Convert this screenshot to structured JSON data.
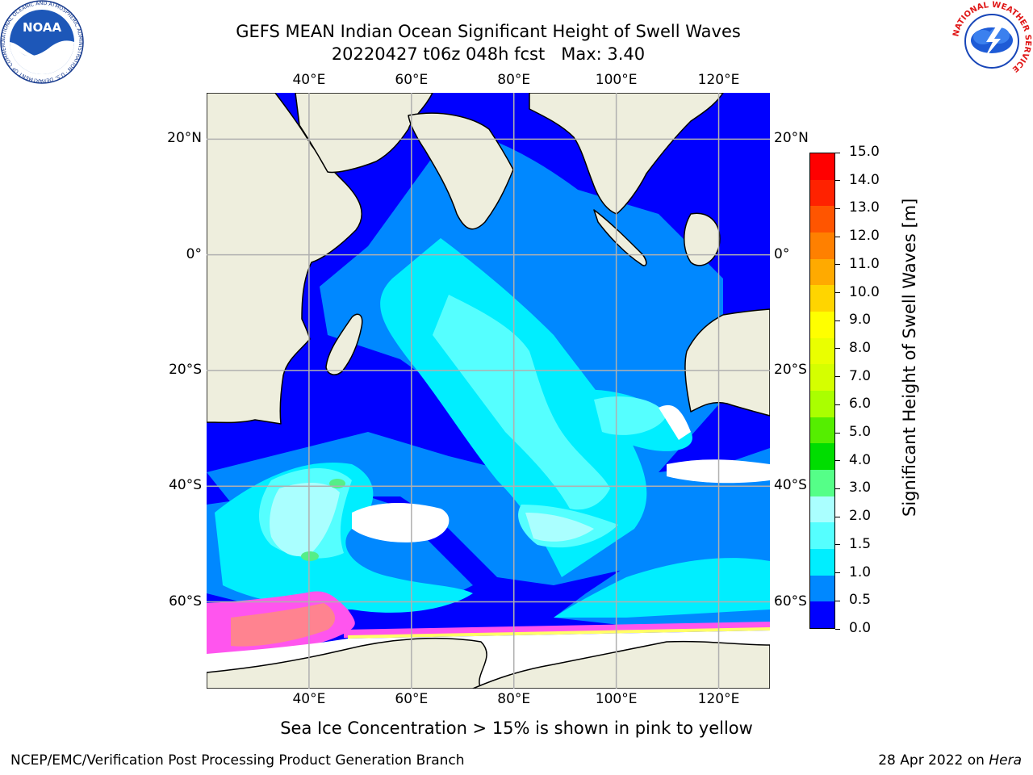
{
  "header": {
    "title_line1": "GEFS MEAN Indian Ocean Significant Height of Swell Waves",
    "title_line2": "20220427 t06z 048h fcst   Max: 3.40",
    "noaa_logo_text": "NOAA",
    "noaa_ring_text": "NATIONAL OCEANIC AND ATMOSPHERIC ADMINISTRATION · U.S. DEPARTMENT OF COMMERCE ·",
    "nws_ring_text": "NATIONAL WEATHER SERVICE"
  },
  "map": {
    "lon_ticks": [
      "40°E",
      "60°E",
      "80°E",
      "100°E",
      "120°E"
    ],
    "lat_ticks": [
      "20°N",
      "0°",
      "20°S",
      "40°S",
      "60°S"
    ],
    "lon_range": [
      20,
      130
    ],
    "lat_range": [
      -75,
      28
    ],
    "colors": {
      "land": "#eeeedd",
      "ocean_base": "#0000ff",
      "sea_ice": "#ff55ee",
      "ice_shelf": "#ffffff",
      "grid": "#b0b0b0"
    }
  },
  "colorbar": {
    "label": "Significant Height of Swell Waves [m]",
    "ticks": [
      "15.0",
      "14.0",
      "13.0",
      "12.0",
      "11.0",
      "10.0",
      "9.0",
      "8.0",
      "7.0",
      "6.0",
      "5.0",
      "4.0",
      "3.0",
      "2.0",
      "1.5",
      "1.0",
      "0.5",
      "0.0"
    ],
    "colors_top_to_bottom": [
      "#ff0000",
      "#ff2200",
      "#ff5500",
      "#ff8000",
      "#ffaa00",
      "#ffd500",
      "#ffff00",
      "#eaff00",
      "#d5ff00",
      "#aaff00",
      "#55ee00",
      "#00dd00",
      "#55ff88",
      "#aaffff",
      "#55ffff",
      "#00eeff",
      "#0088ff",
      "#0000ff"
    ]
  },
  "footer": {
    "note": "Sea Ice Concentration > 15% is shown in pink to yellow",
    "credit": "NCEP/EMC/Verification Post Processing Product Generation Branch",
    "date": "28 Apr 2022 on ",
    "host": "Hera"
  }
}
